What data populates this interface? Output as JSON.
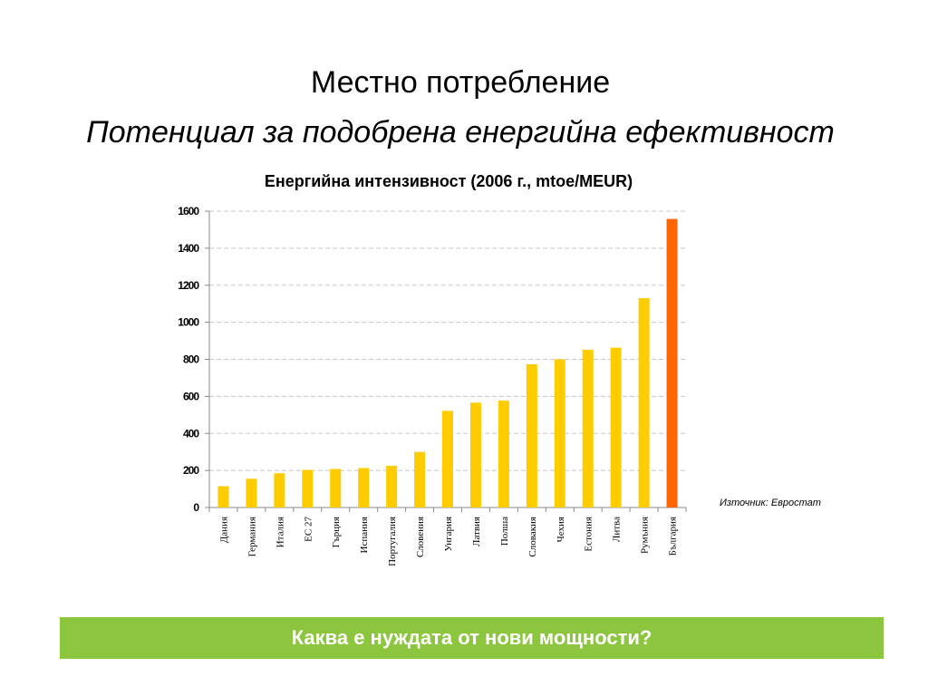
{
  "slide": {
    "title": "Местно потребление",
    "subtitle": "Потенциал за подобрена енергийна ефективност",
    "source": "Източник: Евростат",
    "bottom_banner": "Каква е нуждата от нови мощности?"
  },
  "colors": {
    "bar": "#ffcc00",
    "highlight_bar": "#ff6600",
    "banner": "#8cc63e"
  },
  "chart_data": {
    "type": "bar",
    "title": "Енергийна интензивност (2006 г., mtoe/MEUR)",
    "categories": [
      "Дания",
      "Германия",
      "Италия",
      "ЕС 27",
      "Гърция",
      "Испания",
      "Португалия",
      "Словения",
      "Унгария",
      "Латвия",
      "Полша",
      "Словакия",
      "Чехия",
      "Естония",
      "Литва",
      "Румъния",
      "България"
    ],
    "values": [
      115,
      155,
      185,
      203,
      208,
      213,
      225,
      300,
      522,
      566,
      577,
      773,
      800,
      852,
      863,
      1130,
      1558
    ],
    "highlight_category": "България",
    "ylim": [
      0,
      1600
    ],
    "yticks": [
      0,
      200,
      400,
      600,
      800,
      1000,
      1200,
      1400,
      1600
    ],
    "grid": true,
    "xlabel": "",
    "ylabel": ""
  }
}
